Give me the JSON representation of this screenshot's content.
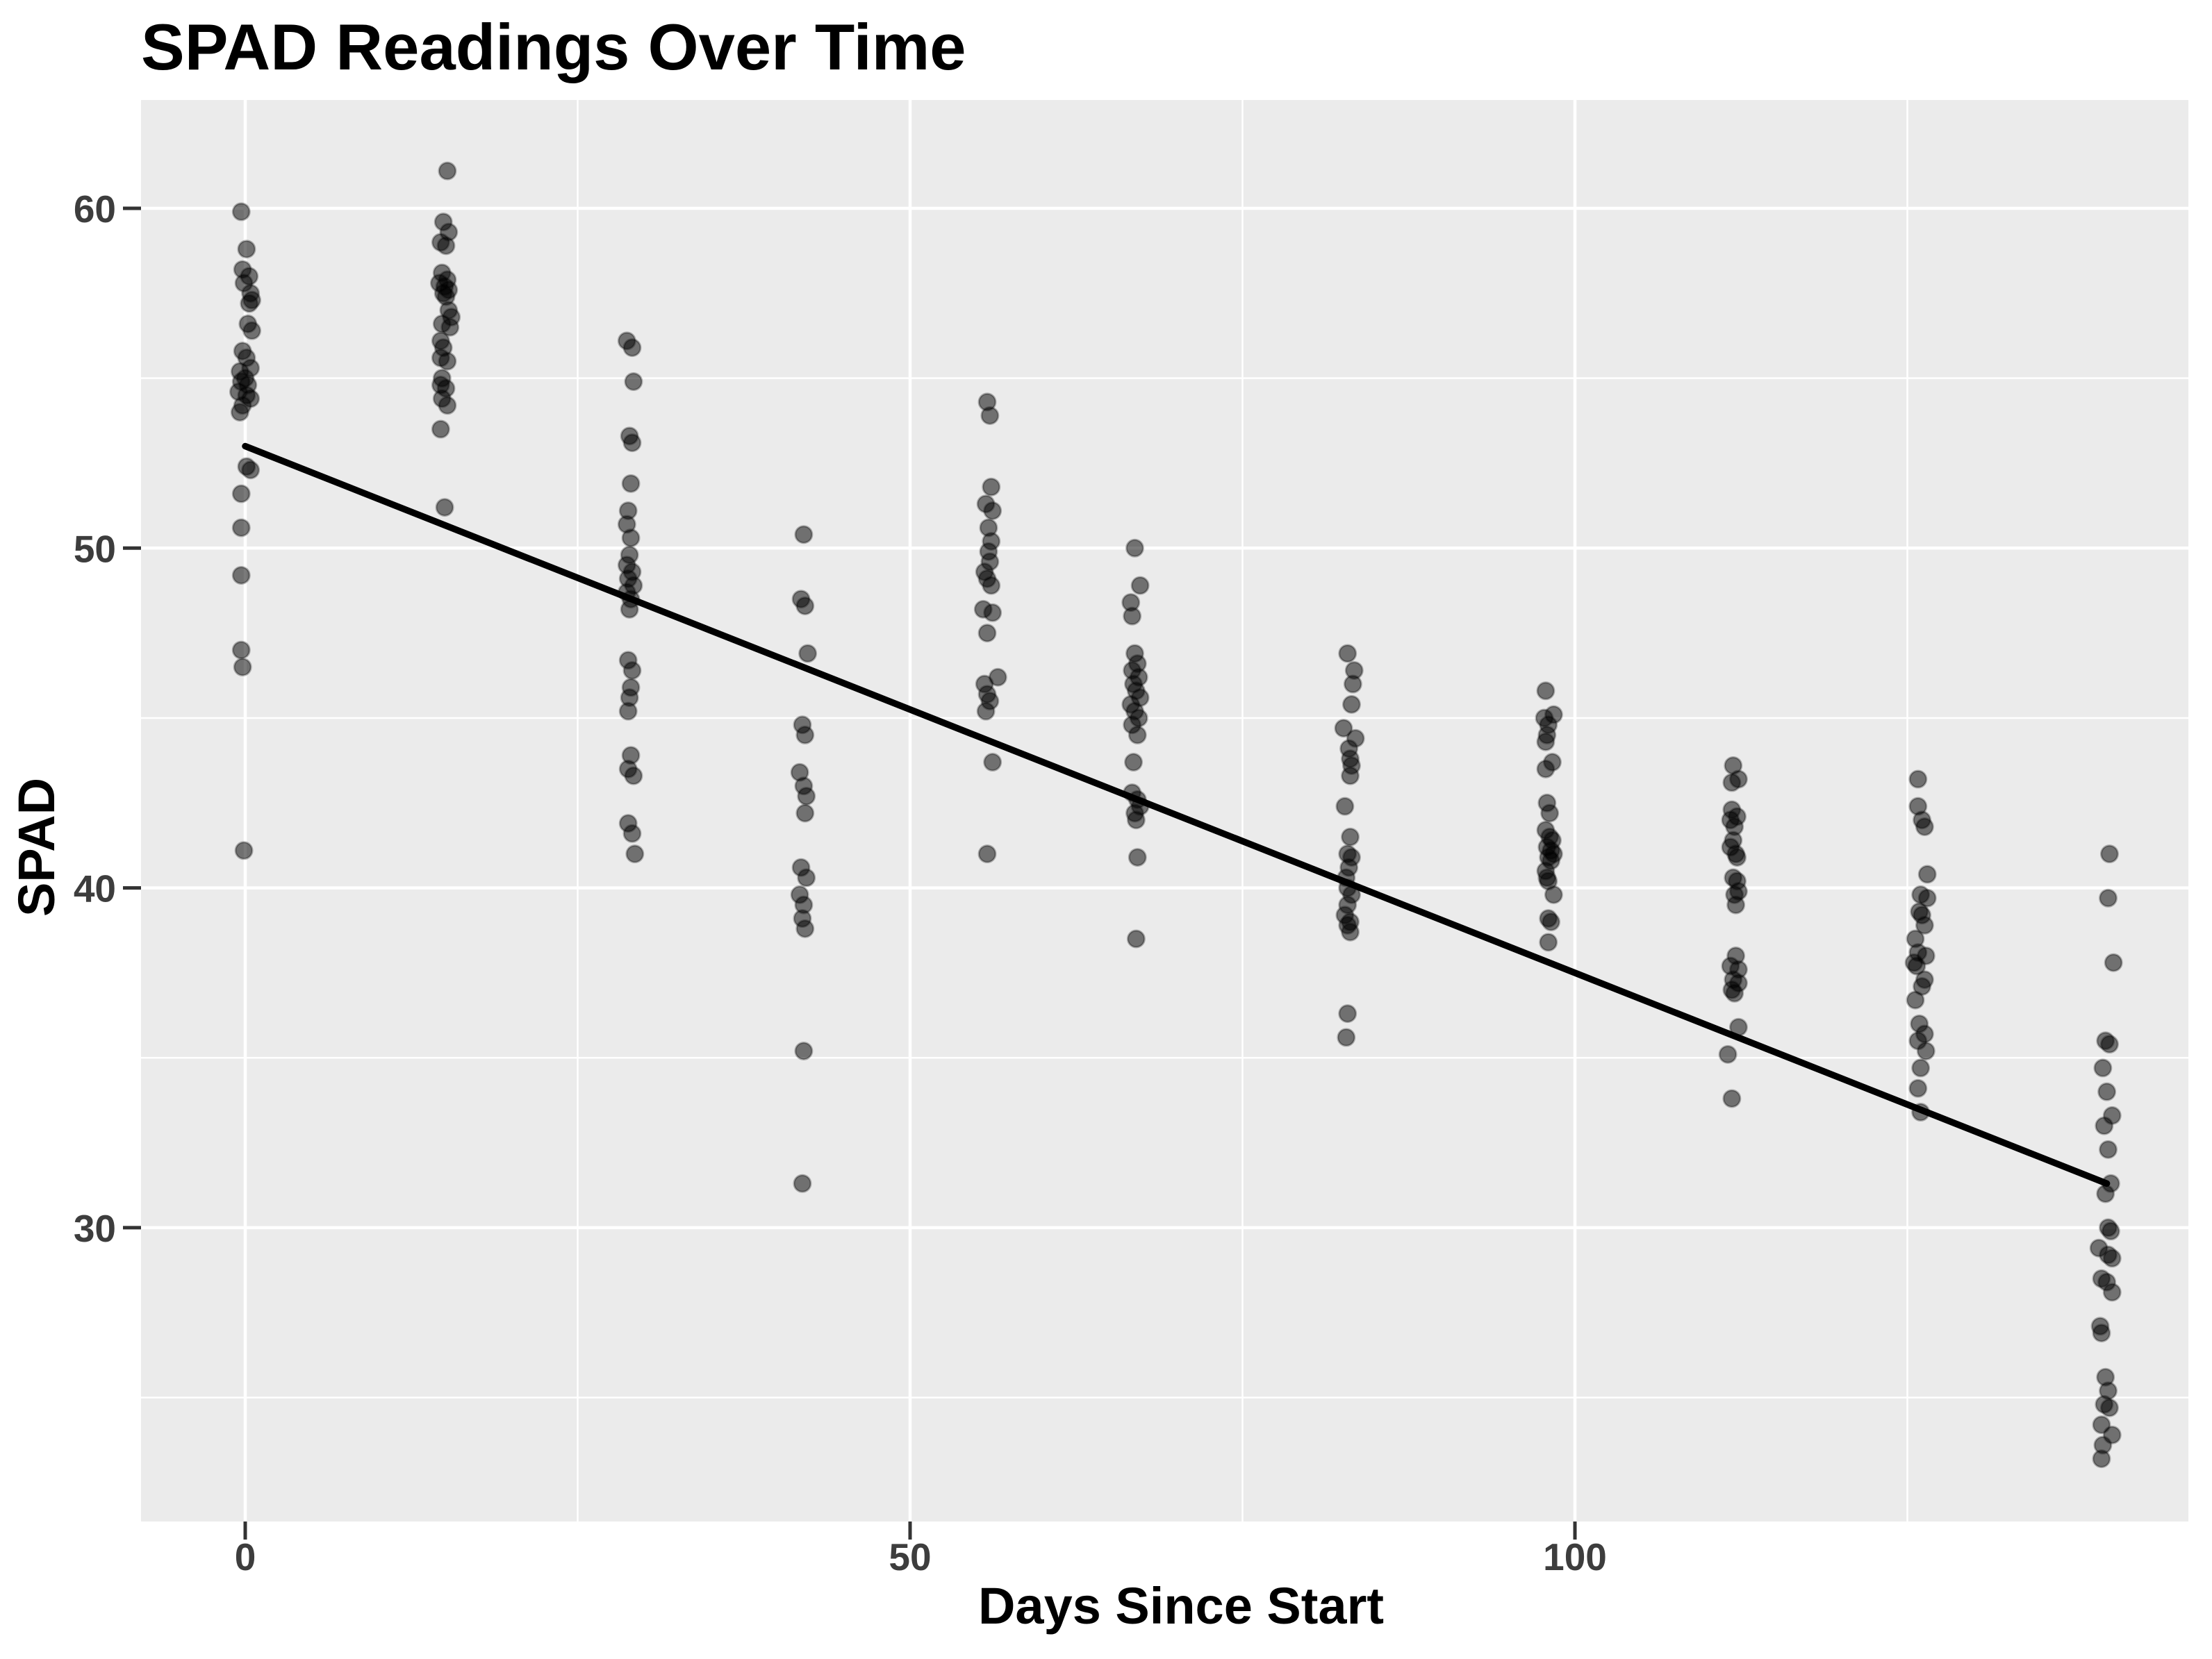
{
  "chart_data": {
    "type": "scatter",
    "title": "SPAD Readings Over Time",
    "xlabel": "Days Since Start",
    "ylabel": "SPAD",
    "x_ticks": [
      0,
      50,
      100
    ],
    "y_ticks": [
      30,
      40,
      50,
      60
    ],
    "x_minor": [
      25,
      75,
      125
    ],
    "y_minor": [
      25,
      35,
      45,
      55
    ],
    "xlim": [
      -7.8,
      146.1
    ],
    "ylim": [
      21.3,
      63.2
    ],
    "grid": "major-and-minor-white-on-grey",
    "legend": "none",
    "trend_line": {
      "x1": 0,
      "y1": 53.0,
      "x2": 140,
      "y2": 31.3
    },
    "series": [
      {
        "day": 0,
        "points": [
          [
            -0.3,
            59.9
          ],
          [
            0.1,
            58.8
          ],
          [
            -0.2,
            58.2
          ],
          [
            0.3,
            58.0
          ],
          [
            -0.1,
            57.8
          ],
          [
            0.4,
            57.5
          ],
          [
            0.5,
            57.3
          ],
          [
            0.3,
            57.2
          ],
          [
            0.2,
            56.6
          ],
          [
            0.5,
            56.4
          ],
          [
            -0.2,
            55.8
          ],
          [
            0.1,
            55.6
          ],
          [
            0.4,
            55.3
          ],
          [
            -0.4,
            55.2
          ],
          [
            0.0,
            55.0
          ],
          [
            -0.3,
            54.9
          ],
          [
            0.2,
            54.8
          ],
          [
            -0.5,
            54.6
          ],
          [
            0.1,
            54.5
          ],
          [
            0.4,
            54.4
          ],
          [
            -0.2,
            54.2
          ],
          [
            -0.4,
            54.0
          ],
          [
            0.1,
            52.4
          ],
          [
            0.4,
            52.3
          ],
          [
            -0.3,
            51.6
          ],
          [
            -0.3,
            50.6
          ],
          [
            -0.3,
            49.2
          ],
          [
            -0.3,
            47.0
          ],
          [
            -0.2,
            46.5
          ],
          [
            -0.1,
            41.1
          ]
        ]
      },
      {
        "day": 15,
        "points": [
          [
            0.2,
            61.1
          ],
          [
            -0.1,
            59.6
          ],
          [
            0.3,
            59.3
          ],
          [
            -0.3,
            59.0
          ],
          [
            0.1,
            58.9
          ],
          [
            -0.2,
            58.1
          ],
          [
            0.2,
            57.9
          ],
          [
            -0.4,
            57.8
          ],
          [
            0.0,
            57.7
          ],
          [
            0.3,
            57.6
          ],
          [
            -0.1,
            57.5
          ],
          [
            0.1,
            57.4
          ],
          [
            0.3,
            57.0
          ],
          [
            0.5,
            56.8
          ],
          [
            -0.2,
            56.6
          ],
          [
            0.4,
            56.5
          ],
          [
            -0.3,
            56.1
          ],
          [
            -0.1,
            55.9
          ],
          [
            -0.3,
            55.6
          ],
          [
            0.2,
            55.5
          ],
          [
            -0.2,
            55.0
          ],
          [
            -0.3,
            54.8
          ],
          [
            0.1,
            54.7
          ],
          [
            -0.2,
            54.4
          ],
          [
            0.2,
            54.2
          ],
          [
            -0.3,
            53.5
          ],
          [
            0.0,
            51.2
          ]
        ]
      },
      {
        "day": 29,
        "points": [
          [
            -0.3,
            56.1
          ],
          [
            0.1,
            55.9
          ],
          [
            0.2,
            54.9
          ],
          [
            -0.1,
            53.3
          ],
          [
            0.1,
            53.1
          ],
          [
            0.0,
            51.9
          ],
          [
            -0.2,
            51.1
          ],
          [
            -0.3,
            50.7
          ],
          [
            0.0,
            50.3
          ],
          [
            -0.1,
            49.8
          ],
          [
            -0.3,
            49.5
          ],
          [
            0.1,
            49.3
          ],
          [
            -0.2,
            49.1
          ],
          [
            0.2,
            48.9
          ],
          [
            -0.3,
            48.7
          ],
          [
            0.0,
            48.5
          ],
          [
            -0.1,
            48.2
          ],
          [
            -0.2,
            46.7
          ],
          [
            0.1,
            46.4
          ],
          [
            0.0,
            45.9
          ],
          [
            -0.1,
            45.6
          ],
          [
            -0.2,
            45.2
          ],
          [
            0.0,
            43.9
          ],
          [
            -0.2,
            43.5
          ],
          [
            0.2,
            43.3
          ],
          [
            -0.2,
            41.9
          ],
          [
            0.1,
            41.6
          ],
          [
            0.3,
            41.0
          ]
        ]
      },
      {
        "day": 42,
        "points": [
          [
            0.0,
            50.4
          ],
          [
            -0.2,
            48.5
          ],
          [
            0.1,
            48.3
          ],
          [
            0.3,
            46.9
          ],
          [
            -0.1,
            44.8
          ],
          [
            0.1,
            44.5
          ],
          [
            -0.3,
            43.4
          ],
          [
            0.0,
            43.0
          ],
          [
            0.2,
            42.7
          ],
          [
            0.1,
            42.2
          ],
          [
            -0.2,
            40.6
          ],
          [
            0.2,
            40.3
          ],
          [
            -0.3,
            39.8
          ],
          [
            0.0,
            39.5
          ],
          [
            -0.1,
            39.1
          ],
          [
            0.1,
            38.8
          ],
          [
            0.0,
            35.2
          ],
          [
            -0.1,
            31.3
          ]
        ]
      },
      {
        "day": 56,
        "points": [
          [
            -0.2,
            54.3
          ],
          [
            0.0,
            53.9
          ],
          [
            0.1,
            51.8
          ],
          [
            -0.3,
            51.3
          ],
          [
            0.2,
            51.1
          ],
          [
            -0.1,
            50.6
          ],
          [
            0.1,
            50.2
          ],
          [
            -0.1,
            49.9
          ],
          [
            0.0,
            49.6
          ],
          [
            -0.4,
            49.3
          ],
          [
            -0.2,
            49.1
          ],
          [
            0.1,
            48.9
          ],
          [
            -0.5,
            48.2
          ],
          [
            0.2,
            48.1
          ],
          [
            -0.2,
            47.5
          ],
          [
            0.6,
            46.2
          ],
          [
            -0.4,
            46.0
          ],
          [
            -0.2,
            45.7
          ],
          [
            0.0,
            45.5
          ],
          [
            -0.3,
            45.2
          ],
          [
            0.2,
            43.7
          ],
          [
            -0.2,
            41.0
          ]
        ]
      },
      {
        "day": 67,
        "points": [
          [
            -0.1,
            50.0
          ],
          [
            0.3,
            48.9
          ],
          [
            -0.4,
            48.4
          ],
          [
            -0.3,
            48.0
          ],
          [
            -0.1,
            46.9
          ],
          [
            0.1,
            46.6
          ],
          [
            -0.3,
            46.4
          ],
          [
            0.2,
            46.2
          ],
          [
            -0.2,
            46.0
          ],
          [
            0.0,
            45.8
          ],
          [
            0.3,
            45.6
          ],
          [
            -0.4,
            45.4
          ],
          [
            -0.1,
            45.2
          ],
          [
            0.2,
            45.0
          ],
          [
            -0.3,
            44.8
          ],
          [
            0.1,
            44.5
          ],
          [
            -0.2,
            43.7
          ],
          [
            -0.3,
            42.8
          ],
          [
            0.1,
            42.6
          ],
          [
            0.3,
            42.4
          ],
          [
            -0.1,
            42.2
          ],
          [
            0.0,
            42.0
          ],
          [
            0.1,
            40.9
          ],
          [
            0.0,
            38.5
          ]
        ]
      },
      {
        "day": 83,
        "points": [
          [
            -0.1,
            46.9
          ],
          [
            0.4,
            46.4
          ],
          [
            0.3,
            46.0
          ],
          [
            0.2,
            45.4
          ],
          [
            -0.4,
            44.7
          ],
          [
            0.5,
            44.4
          ],
          [
            0.0,
            44.1
          ],
          [
            0.1,
            43.8
          ],
          [
            0.2,
            43.6
          ],
          [
            0.1,
            43.3
          ],
          [
            -0.3,
            42.4
          ],
          [
            0.1,
            41.5
          ],
          [
            -0.1,
            41.0
          ],
          [
            0.2,
            40.9
          ],
          [
            0.0,
            40.6
          ],
          [
            -0.2,
            40.3
          ],
          [
            -0.1,
            40.0
          ],
          [
            0.2,
            39.8
          ],
          [
            -0.1,
            39.5
          ],
          [
            -0.3,
            39.2
          ],
          [
            0.1,
            39.0
          ],
          [
            -0.1,
            38.9
          ],
          [
            0.1,
            38.7
          ],
          [
            -0.1,
            36.3
          ],
          [
            -0.2,
            35.6
          ]
        ]
      },
      {
        "day": 98,
        "points": [
          [
            -0.2,
            45.8
          ],
          [
            0.4,
            45.1
          ],
          [
            -0.3,
            45.0
          ],
          [
            0.0,
            44.8
          ],
          [
            -0.1,
            44.5
          ],
          [
            -0.2,
            44.3
          ],
          [
            0.3,
            43.7
          ],
          [
            -0.2,
            43.5
          ],
          [
            -0.1,
            42.5
          ],
          [
            0.1,
            42.2
          ],
          [
            -0.2,
            41.7
          ],
          [
            0.1,
            41.5
          ],
          [
            0.3,
            41.4
          ],
          [
            -0.1,
            41.2
          ],
          [
            0.2,
            41.1
          ],
          [
            0.4,
            41.0
          ],
          [
            0.0,
            40.9
          ],
          [
            0.2,
            40.8
          ],
          [
            -0.2,
            40.5
          ],
          [
            -0.1,
            40.3
          ],
          [
            0.0,
            40.2
          ],
          [
            0.4,
            39.8
          ],
          [
            0.0,
            39.1
          ],
          [
            0.2,
            39.0
          ],
          [
            0.0,
            38.4
          ]
        ]
      },
      {
        "day": 112,
        "points": [
          [
            -0.1,
            43.6
          ],
          [
            0.3,
            43.2
          ],
          [
            -0.2,
            43.1
          ],
          [
            -0.2,
            42.3
          ],
          [
            0.2,
            42.1
          ],
          [
            -0.3,
            42.0
          ],
          [
            0.0,
            41.8
          ],
          [
            -0.1,
            41.4
          ],
          [
            -0.3,
            41.2
          ],
          [
            0.1,
            41.0
          ],
          [
            0.2,
            40.9
          ],
          [
            -0.1,
            40.3
          ],
          [
            0.2,
            40.2
          ],
          [
            0.3,
            39.9
          ],
          [
            0.0,
            39.8
          ],
          [
            0.1,
            39.5
          ],
          [
            0.1,
            38.0
          ],
          [
            -0.3,
            37.7
          ],
          [
            0.3,
            37.6
          ],
          [
            -0.1,
            37.3
          ],
          [
            0.3,
            37.2
          ],
          [
            -0.2,
            37.0
          ],
          [
            0.0,
            36.9
          ],
          [
            0.3,
            35.9
          ],
          [
            -0.5,
            35.1
          ],
          [
            -0.2,
            33.8
          ]
        ]
      },
      {
        "day": 126,
        "points": [
          [
            -0.2,
            43.2
          ],
          [
            -0.2,
            42.4
          ],
          [
            0.1,
            42.0
          ],
          [
            0.3,
            41.8
          ],
          [
            0.5,
            40.4
          ],
          [
            0.0,
            39.8
          ],
          [
            0.5,
            39.7
          ],
          [
            -0.1,
            39.3
          ],
          [
            0.1,
            39.2
          ],
          [
            0.3,
            38.9
          ],
          [
            -0.4,
            38.5
          ],
          [
            -0.2,
            38.1
          ],
          [
            0.4,
            38.0
          ],
          [
            -0.5,
            37.8
          ],
          [
            -0.3,
            37.7
          ],
          [
            0.3,
            37.3
          ],
          [
            0.1,
            37.1
          ],
          [
            -0.4,
            36.7
          ],
          [
            -0.1,
            36.0
          ],
          [
            0.3,
            35.7
          ],
          [
            -0.2,
            35.5
          ],
          [
            0.4,
            35.2
          ],
          [
            0.0,
            34.7
          ],
          [
            -0.2,
            34.1
          ],
          [
            0.0,
            33.4
          ]
        ]
      },
      {
        "day": 140,
        "points": [
          [
            0.2,
            41.0
          ],
          [
            0.1,
            39.7
          ],
          [
            0.5,
            37.8
          ],
          [
            -0.1,
            35.5
          ],
          [
            0.2,
            35.4
          ],
          [
            -0.3,
            34.7
          ],
          [
            0.0,
            34.0
          ],
          [
            0.4,
            33.3
          ],
          [
            -0.2,
            33.0
          ],
          [
            0.1,
            32.3
          ],
          [
            0.3,
            31.3
          ],
          [
            -0.1,
            31.0
          ],
          [
            0.1,
            30.0
          ],
          [
            0.3,
            29.9
          ],
          [
            -0.6,
            29.4
          ],
          [
            0.1,
            29.2
          ],
          [
            0.4,
            29.1
          ],
          [
            -0.4,
            28.5
          ],
          [
            0.0,
            28.4
          ],
          [
            0.4,
            28.1
          ],
          [
            -0.5,
            27.1
          ],
          [
            -0.4,
            26.9
          ],
          [
            -0.1,
            25.6
          ],
          [
            0.1,
            25.2
          ],
          [
            -0.2,
            24.8
          ],
          [
            0.2,
            24.7
          ],
          [
            -0.4,
            24.2
          ],
          [
            0.4,
            23.9
          ],
          [
            -0.3,
            23.6
          ],
          [
            -0.4,
            23.2
          ]
        ]
      }
    ]
  },
  "colors": {
    "panel_background": "#EBEBEB",
    "gridline": "#FFFFFF",
    "point": "#000000",
    "point_opacity": 0.52,
    "trend_line": "#000000",
    "title_text": "#000000",
    "tick_text": "#3D3D3D"
  }
}
